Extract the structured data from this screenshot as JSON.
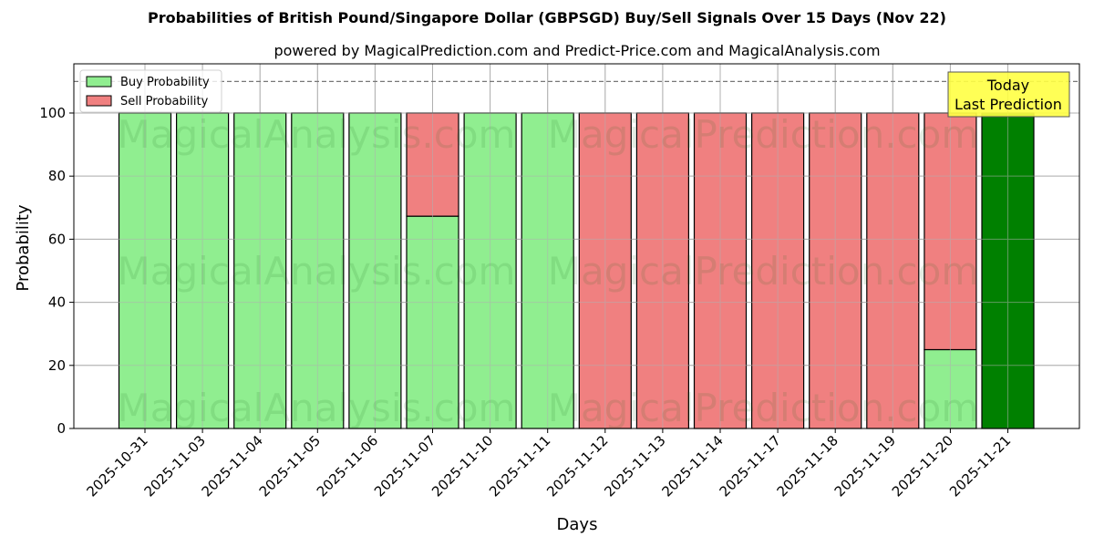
{
  "header": {
    "title": "Probabilities of British Pound/Singapore Dollar (GBPSGD) Buy/Sell Signals Over 15 Days (Nov 22)",
    "subtitle": "powered by MagicalPrediction.com and Predict-Price.com and MagicalAnalysis.com"
  },
  "legend": {
    "buy_label": "Buy Probability",
    "sell_label": "Sell Probability"
  },
  "annotation": {
    "line1": "Today",
    "line2": "Last Prediction"
  },
  "watermarks": [
    "MagicalAnalysis.com",
    "MagicalPrediction.com"
  ],
  "colors": {
    "buy": "#90ee90",
    "sell": "#f08080",
    "today": "#008000",
    "annotation_bg": "#ffff44",
    "grid": "#b0b0b0"
  },
  "chart_data": {
    "type": "bar",
    "stacked": true,
    "title": "Probabilities of British Pound/Singapore Dollar (GBPSGD) Buy/Sell Signals Over 15 Days (Nov 22)",
    "subtitle": "powered by MagicalPrediction.com and Predict-Price.com and MagicalAnalysis.com",
    "xlabel": "Days",
    "ylabel": "Probability",
    "ylim": [
      0,
      115.6
    ],
    "yticks": [
      0,
      20,
      40,
      60,
      80,
      100
    ],
    "grid": true,
    "legend_position": "upper left",
    "reference_line": {
      "y": 110,
      "style": "dashed"
    },
    "categories": [
      "2025-10-31",
      "2025-11-03",
      "2025-11-04",
      "2025-11-05",
      "2025-11-06",
      "2025-11-07",
      "2025-11-10",
      "2025-11-11",
      "2025-11-12",
      "2025-11-13",
      "2025-11-14",
      "2025-11-17",
      "2025-11-18",
      "2025-11-19",
      "2025-11-20",
      "2025-11-21"
    ],
    "series": [
      {
        "name": "Buy Probability",
        "values": [
          100,
          100,
          100,
          100,
          100,
          67.3,
          100,
          100,
          0,
          0,
          0,
          0,
          0,
          0,
          25,
          100
        ]
      },
      {
        "name": "Sell Probability",
        "values": [
          0,
          0,
          0,
          0,
          0,
          32.7,
          0,
          0,
          100,
          100,
          100,
          100,
          100,
          100,
          75,
          0
        ]
      }
    ],
    "highlight": {
      "category": "2025-11-21",
      "label": "Today\nLast Prediction"
    }
  }
}
